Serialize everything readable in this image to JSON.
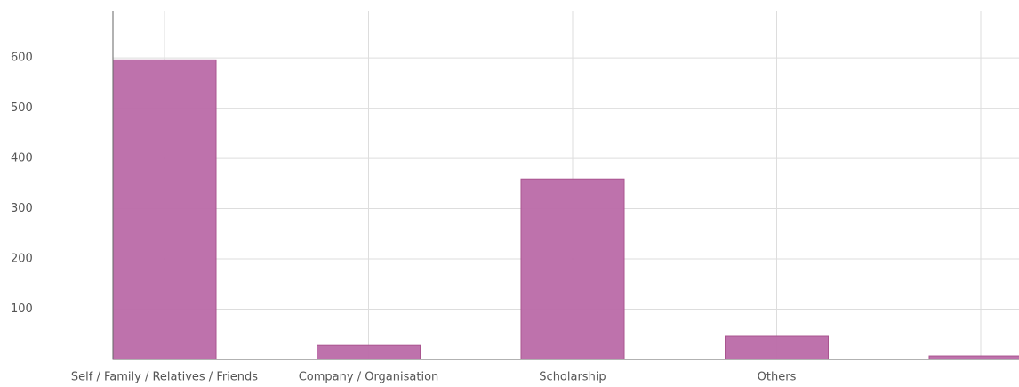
{
  "chart_data": {
    "type": "bar",
    "categories": [
      "Self / Family / Relatives / Friends",
      "Company / Organisation",
      "Scholarship",
      "Others",
      null
    ],
    "values": [
      596,
      28,
      359,
      46,
      7
    ],
    "color": "#bb6aa8",
    "ylim": [
      0,
      694
    ],
    "yticks": [
      100,
      200,
      300,
      400,
      500,
      600
    ],
    "grid": true
  }
}
